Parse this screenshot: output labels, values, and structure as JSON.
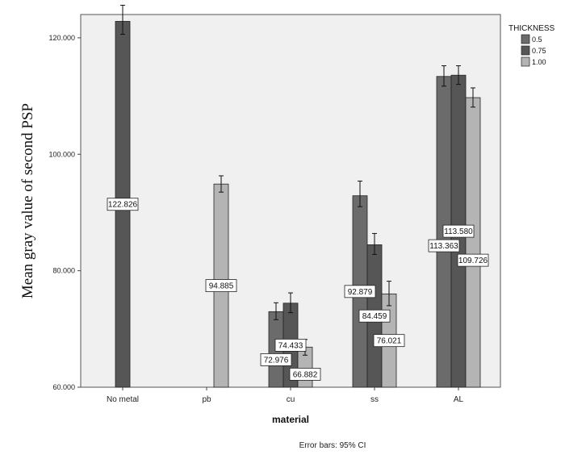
{
  "chart_data": {
    "type": "bar",
    "title": "",
    "xlabel": "material",
    "ylabel": "Mean gray value of second PSP",
    "footnote": "Error bars: 95% CI",
    "ylim": [
      60,
      124
    ],
    "yticks": [
      60,
      80,
      100,
      120
    ],
    "ytick_labels": [
      "60.000",
      "80.000",
      "100.000",
      "120.000"
    ],
    "grid": false,
    "legend": {
      "title": "THICKNESS",
      "placement": "top-right, outside plot"
    },
    "categories": [
      "No metal",
      "pb",
      "cu",
      "ss",
      "AL"
    ],
    "series": [
      {
        "name": "0.5",
        "color": "#6b6b6b",
        "values": [
          null,
          null,
          72.976,
          92.879,
          113.363
        ],
        "ci": [
          null,
          null,
          [
            71.6,
            74.5
          ],
          [
            91.0,
            95.4
          ],
          [
            111.7,
            115.2
          ]
        ],
        "labels": [
          "",
          "",
          "72.976",
          "92.879",
          "113.363"
        ]
      },
      {
        "name": "0.75",
        "color": "#565656",
        "values": [
          122.826,
          null,
          74.433,
          84.459,
          113.58
        ],
        "ci": [
          [
            120.6,
            125.6
          ],
          null,
          [
            72.8,
            76.2
          ],
          [
            82.8,
            86.4
          ],
          [
            112.0,
            115.2
          ]
        ],
        "labels": [
          "122.826",
          "",
          "74.433",
          "84.459",
          "113.580"
        ]
      },
      {
        "name": "1.00",
        "color": "#b4b4b4",
        "values": [
          null,
          94.885,
          66.882,
          76.021,
          109.726
        ],
        "ci": [
          null,
          [
            93.5,
            96.3
          ],
          [
            65.5,
            68.2
          ],
          [
            74.0,
            78.2
          ],
          [
            108.1,
            111.4
          ]
        ],
        "labels": [
          "",
          "94.885",
          "66.882",
          "76.021",
          "109.726"
        ]
      }
    ]
  }
}
